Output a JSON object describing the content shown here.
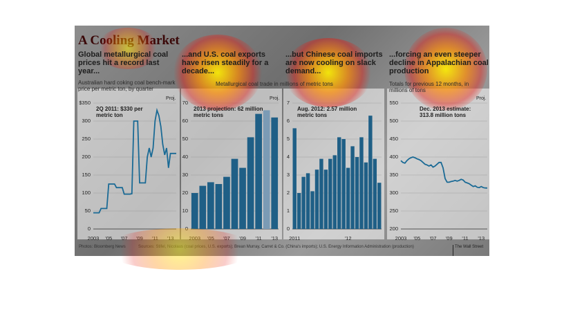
{
  "title": "A Cooling Market",
  "photo_credit": "Photos: Bloomberg News",
  "sources": "Sources: Stifel, Nicolaus (coal prices, U.S. exports); Brean Murray, Carret & Co. (China's imports); U.S. Energy Information Administration (production)",
  "brand": "The Wall Street",
  "chart_data": [
    {
      "type": "line",
      "title": "Global metallurgical coal prices hit a record last year...",
      "subtitle": "Australian hard coking coal bench-mark price per metric ton, by quarter",
      "annotation": "2Q 2011: $330 per metric ton",
      "note": "Proj.",
      "categories": [
        "2003",
        null,
        null,
        null,
        null,
        null,
        null,
        null,
        "'05",
        null,
        null,
        null,
        null,
        null,
        null,
        null,
        "'07",
        null,
        null,
        null,
        null,
        null,
        null,
        null,
        "'09",
        null,
        null,
        null,
        null,
        null,
        null,
        null,
        "'11",
        null,
        null,
        null,
        null,
        null,
        null,
        null,
        "'13",
        null,
        null,
        null
      ],
      "values": [
        45,
        45,
        45,
        45,
        57,
        57,
        57,
        57,
        125,
        125,
        125,
        125,
        115,
        115,
        115,
        115,
        97,
        97,
        97,
        97,
        98,
        300,
        300,
        300,
        128,
        128,
        128,
        128,
        200,
        225,
        200,
        225,
        300,
        330,
        315,
        285,
        235,
        206,
        225,
        170,
        210,
        210,
        210,
        210
      ],
      "color": "#1a6a95",
      "ylim": [
        0,
        350
      ],
      "yticks": [
        0,
        50,
        100,
        150,
        200,
        250,
        300,
        {
          "value": 350,
          "label": "$350"
        }
      ],
      "grid": true
    },
    {
      "type": "bar",
      "title": "...and U.S. coal exports have risen steadily for a decade...",
      "subtitle": "Metallurgical coal trade in millions of metric tons",
      "annotation": "2013 projection: 62 million metric tons",
      "note": "Proj.",
      "categories": [
        "2003",
        null,
        "'05",
        null,
        "'07",
        null,
        "'09",
        null,
        "'11",
        null,
        "'13"
      ],
      "values": [
        20,
        24,
        26,
        25,
        29,
        39,
        34,
        51,
        64,
        66,
        62
      ],
      "colors": [
        "#1f5f86",
        "#1f5f86",
        "#1f5f86",
        "#1f5f86",
        "#1f5f86",
        "#1f5f86",
        "#1f5f86",
        "#1f5f86",
        "#1f5f86",
        "#7b9bb5",
        "#1f5f86"
      ],
      "ylim": [
        0,
        70
      ],
      "yticks": [
        0,
        10,
        20,
        30,
        40,
        50,
        60,
        70
      ],
      "grid": true
    },
    {
      "type": "bar",
      "title": "...but Chinese coal imports are now cooling on slack demand...",
      "annotation": "Aug. 2012: 2.57 million metric tons",
      "categories": [
        "2011",
        null,
        null,
        null,
        null,
        null,
        null,
        null,
        null,
        null,
        null,
        null,
        "'12",
        null,
        null,
        null,
        null,
        null,
        null,
        null
      ],
      "values": [
        5.6,
        2.0,
        2.9,
        3.1,
        2.1,
        3.3,
        3.9,
        3.3,
        3.9,
        4.1,
        5.1,
        5.0,
        3.4,
        4.6,
        4.0,
        5.1,
        3.7,
        6.3,
        3.9,
        2.57
      ],
      "color": "#1f5f86",
      "ylim": [
        0,
        7
      ],
      "yticks": [
        0,
        1,
        2,
        3,
        4,
        5,
        6,
        7
      ],
      "grid": true
    },
    {
      "type": "line",
      "title": "...forcing an even steeper decline in Appalachian coal production",
      "subtitle": "Totals for previous 12 months, in millions of tons",
      "annotation": "Dec. 2013 estimate: 313.8 million tons",
      "note": "Proj.",
      "categories": [
        "2003",
        null,
        null,
        null,
        null,
        null,
        null,
        null,
        "'05",
        null,
        null,
        null,
        null,
        null,
        null,
        null,
        "'07",
        null,
        null,
        null,
        null,
        null,
        null,
        null,
        "'09",
        null,
        null,
        null,
        null,
        null,
        null,
        null,
        "'11",
        null,
        null,
        null,
        null,
        null,
        null,
        null,
        "'13",
        null,
        null,
        null
      ],
      "values": [
        390,
        385,
        383,
        390,
        395,
        398,
        400,
        398,
        395,
        393,
        390,
        385,
        380,
        378,
        375,
        378,
        372,
        375,
        380,
        385,
        385,
        370,
        340,
        330,
        330,
        332,
        333,
        335,
        333,
        335,
        338,
        336,
        330,
        328,
        326,
        322,
        318,
        320,
        316,
        315,
        318,
        315,
        314,
        313.8
      ],
      "color": "#1a6a95",
      "ylim": [
        200,
        550
      ],
      "yticks": [
        200,
        250,
        300,
        350,
        400,
        450,
        500,
        550
      ],
      "grid": true
    }
  ]
}
